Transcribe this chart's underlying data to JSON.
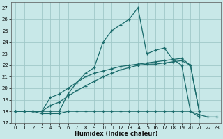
{
  "xlabel": "Humidex (Indice chaleur)",
  "bg_color": "#c8e8e8",
  "grid_color": "#a0c8c8",
  "line_color": "#1a6b6b",
  "xlim": [
    -0.5,
    23.5
  ],
  "ylim": [
    17,
    27.5
  ],
  "yticks": [
    17,
    18,
    19,
    20,
    21,
    22,
    23,
    24,
    25,
    26,
    27
  ],
  "xticks": [
    0,
    1,
    2,
    3,
    4,
    5,
    6,
    7,
    8,
    9,
    10,
    11,
    12,
    13,
    14,
    15,
    16,
    17,
    18,
    19,
    20,
    21,
    22,
    23
  ],
  "series": [
    {
      "x": [
        0,
        1,
        2,
        3,
        4,
        5,
        6,
        7,
        8,
        9,
        10,
        11,
        12,
        13,
        14,
        15,
        16,
        17,
        18,
        19,
        20,
        21,
        22,
        23
      ],
      "y": [
        18,
        18,
        18,
        17.8,
        17.8,
        17.8,
        18,
        18,
        18,
        18,
        18,
        18,
        18,
        18,
        18,
        18,
        18,
        18,
        18,
        18,
        18,
        17.7,
        17.5,
        17.5
      ]
    },
    {
      "x": [
        0,
        1,
        2,
        3,
        4,
        5,
        6,
        7,
        8,
        9,
        10,
        11,
        12,
        13,
        14,
        15,
        16,
        17,
        18,
        19,
        20,
        21
      ],
      "y": [
        18,
        18,
        18,
        18,
        18.5,
        18.8,
        19.3,
        19.8,
        20.2,
        20.6,
        21.0,
        21.3,
        21.6,
        21.8,
        22.0,
        22.1,
        22.1,
        22.2,
        22.3,
        22.4,
        22.0,
        18.0
      ]
    },
    {
      "x": [
        0,
        1,
        2,
        3,
        4,
        5,
        6,
        7,
        8,
        9,
        10,
        11,
        12,
        13,
        14,
        15,
        16,
        17,
        18,
        19,
        20,
        21
      ],
      "y": [
        18,
        18,
        18,
        18,
        19.2,
        19.5,
        20.0,
        20.5,
        21.0,
        21.3,
        21.5,
        21.7,
        21.9,
        22.0,
        22.1,
        22.2,
        22.3,
        22.4,
        22.5,
        22.6,
        22.0,
        18.0
      ]
    },
    {
      "x": [
        0,
        1,
        2,
        3,
        4,
        5,
        6,
        7,
        8,
        9,
        10,
        11,
        12,
        13,
        14,
        15,
        16,
        17,
        18,
        19,
        20,
        21
      ],
      "y": [
        18,
        18,
        18,
        18,
        18,
        18,
        19.5,
        20.5,
        21.3,
        21.8,
        24.0,
        25.0,
        25.5,
        26.0,
        27.0,
        23.0,
        23.3,
        23.5,
        22.5,
        22.0,
        18.0,
        17.5
      ]
    }
  ]
}
